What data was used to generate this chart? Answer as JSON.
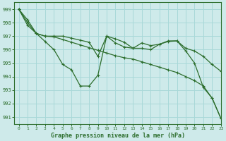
{
  "title": "Graphe pression niveau de la mer (hPa)",
  "bg_color": "#ceeaea",
  "grid_color": "#a8d8d8",
  "line_color": "#2d6e2d",
  "xlim": [
    -0.5,
    23
  ],
  "ylim": [
    990.5,
    999.5
  ],
  "yticks": [
    991,
    992,
    993,
    994,
    995,
    996,
    997,
    998,
    999
  ],
  "xticks": [
    0,
    1,
    2,
    3,
    4,
    5,
    6,
    7,
    8,
    9,
    10,
    11,
    12,
    13,
    14,
    15,
    16,
    17,
    18,
    19,
    20,
    21,
    22,
    23
  ],
  "series": [
    {
      "y": [
        999.0,
        998.0,
        997.2,
        996.6,
        996.0,
        994.9,
        994.5,
        993.3,
        993.3,
        994.1,
        997.0,
        996.5,
        996.2,
        996.1,
        996.5,
        996.3,
        996.4,
        996.6,
        996.65,
        995.9,
        995.0,
        993.2,
        992.4,
        990.9
      ]
    },
    {
      "y": [
        999.0,
        997.8,
        997.2,
        997.0,
        997.0,
        997.0,
        996.85,
        996.7,
        996.55,
        995.5,
        997.0,
        996.8,
        996.55,
        996.1,
        996.1,
        996.0,
        996.4,
        996.65,
        996.65,
        996.1,
        995.9,
        995.5,
        994.9,
        994.4
      ]
    },
    {
      "y": [
        999.0,
        998.2,
        997.2,
        997.0,
        996.95,
        996.75,
        996.55,
        996.35,
        996.15,
        995.95,
        995.75,
        995.55,
        995.4,
        995.3,
        995.1,
        994.9,
        994.7,
        994.5,
        994.3,
        994.0,
        993.7,
        993.3,
        992.4,
        990.9
      ]
    }
  ]
}
